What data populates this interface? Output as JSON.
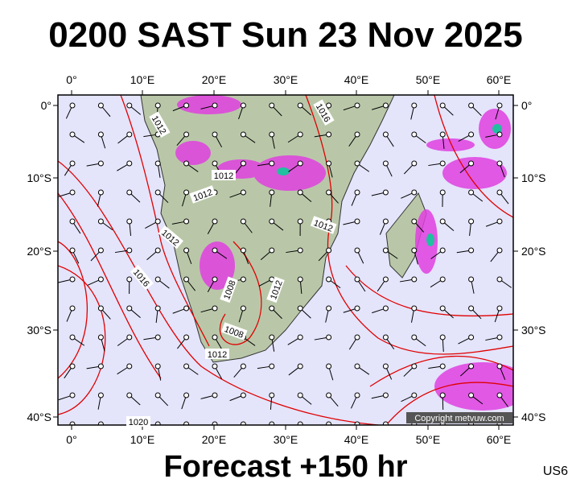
{
  "header": {
    "title": "0200 SAST Sun 23 Nov 2025"
  },
  "map": {
    "lon_labels": [
      "0°",
      "10°E",
      "20°E",
      "30°E",
      "40°E",
      "50°E",
      "60°E"
    ],
    "lat_labels": [
      "0°",
      "10°S",
      "20°S",
      "30°S",
      "40°S"
    ],
    "isobar_labels": [
      "1012",
      "1016",
      "1012",
      "1012",
      "1012",
      "1016",
      "1008",
      "1012",
      "1008",
      "1012",
      "1020",
      "1012"
    ],
    "copyright": "Copyright metvuw.com"
  },
  "footer": {
    "forecast": "Forecast +150 hr",
    "code": "US6"
  }
}
